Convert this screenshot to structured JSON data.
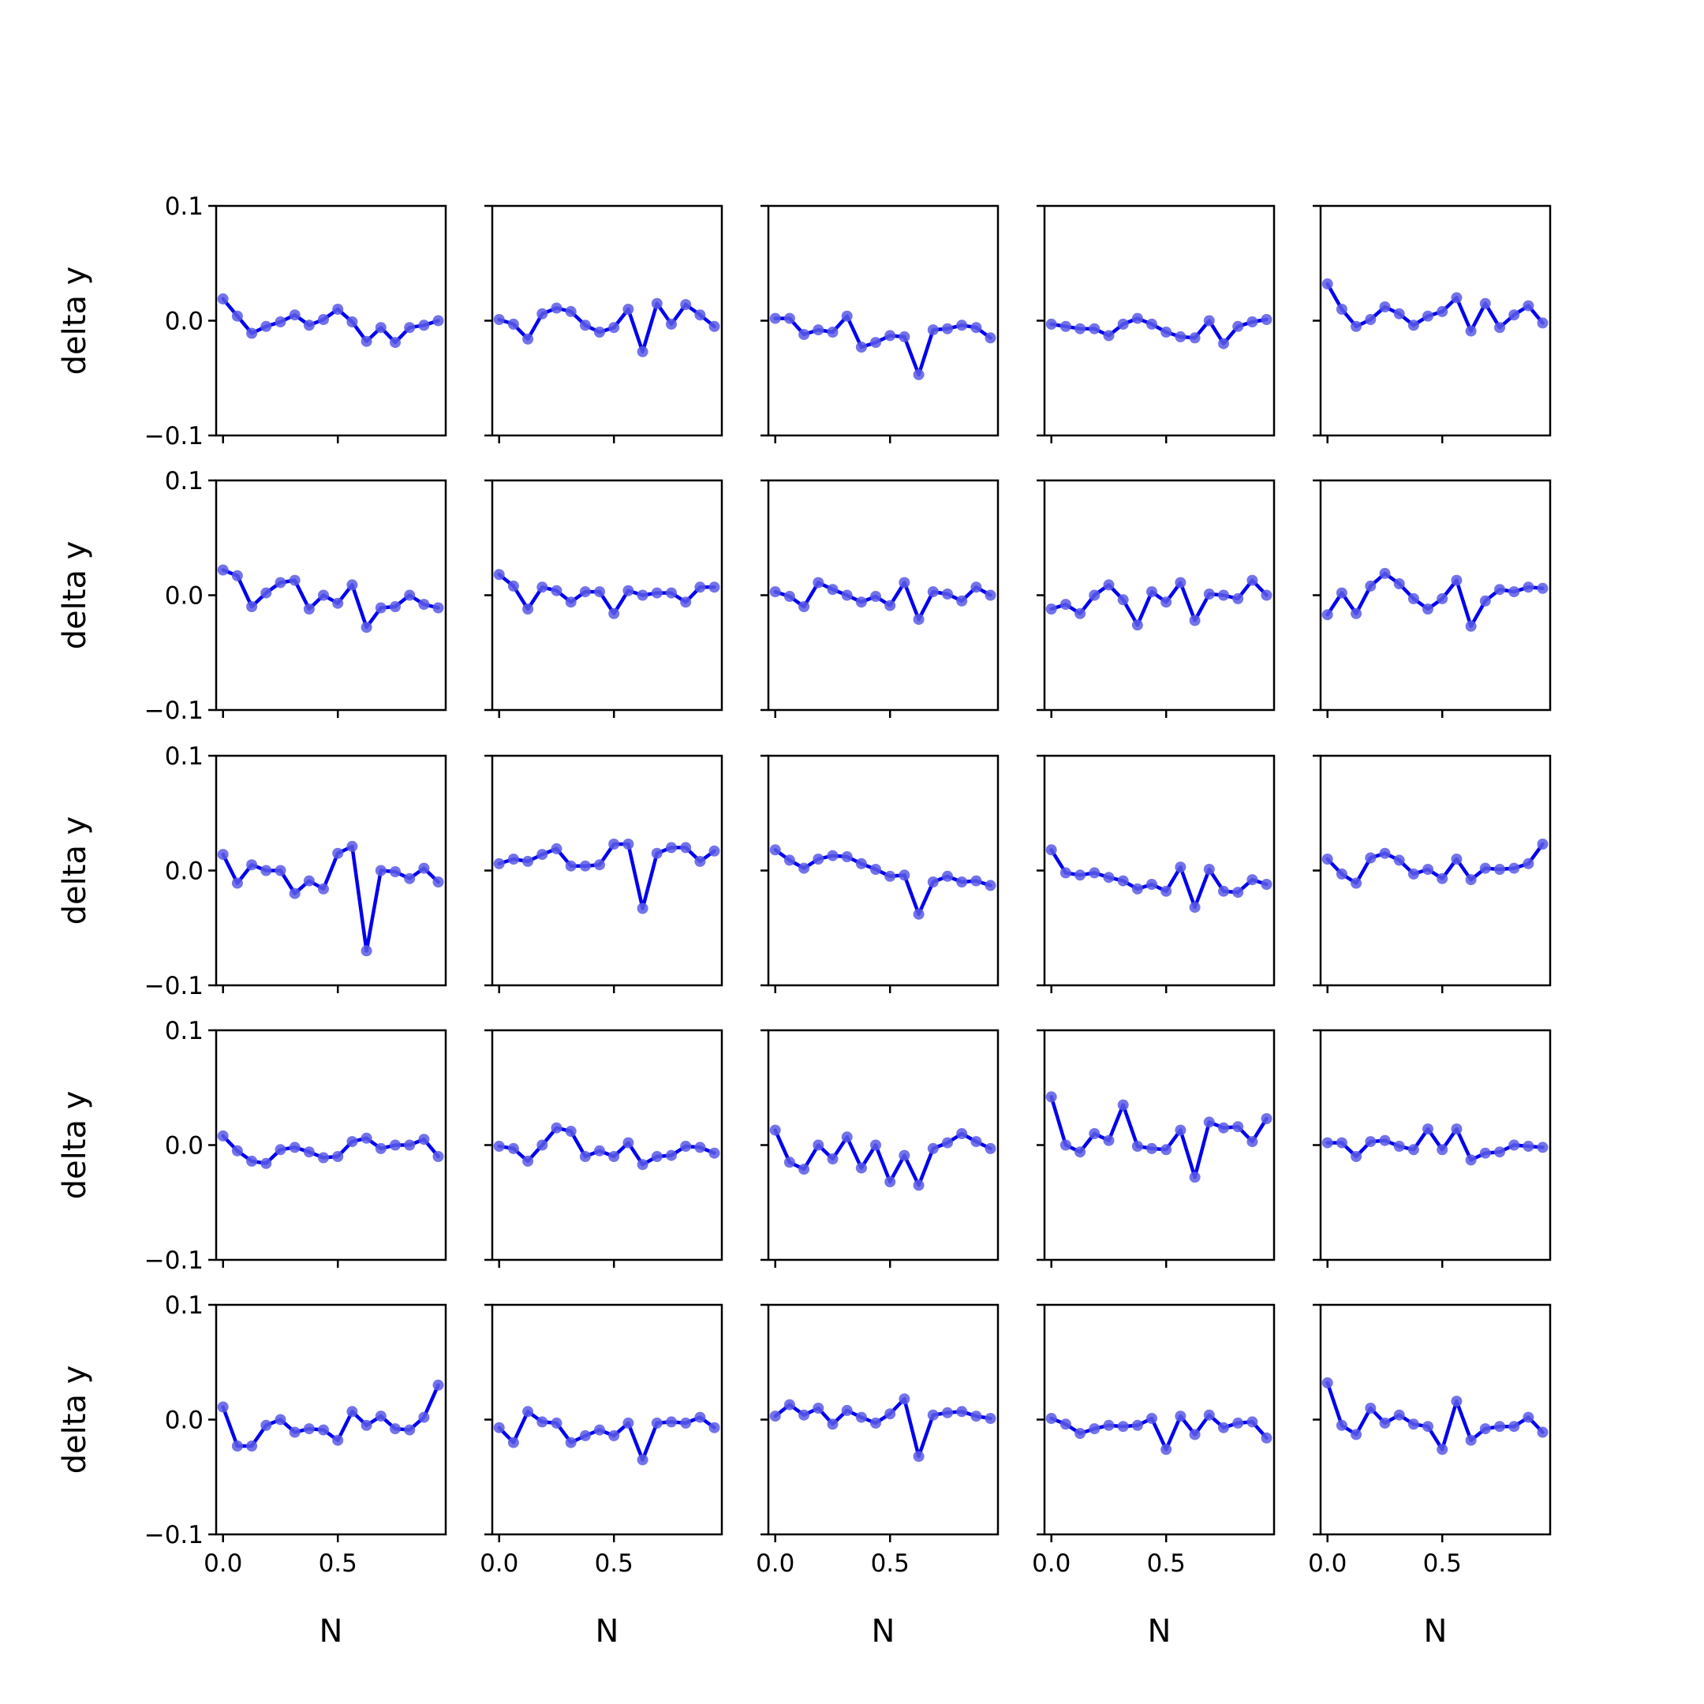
{
  "chart_data": {
    "type": "line",
    "layout": "5x5 grid of subplots, shared x and y axes",
    "xlabel": "N",
    "ylabel": "delta y",
    "xlim": [
      -0.03,
      0.97
    ],
    "ylim": [
      -0.1,
      0.1
    ],
    "x_ticks": [
      0.0,
      0.5
    ],
    "x_tick_labels": [
      "0.0",
      "0.5"
    ],
    "y_ticks": [
      -0.1,
      0.0,
      0.1
    ],
    "y_tick_labels": [
      "−0.1",
      "0.0",
      "0.1"
    ],
    "grid": false,
    "colors": {
      "line": "#0000ee",
      "marker": "#5a5ae6"
    },
    "x": [
      0.0,
      0.0625,
      0.125,
      0.1875,
      0.25,
      0.3125,
      0.375,
      0.4375,
      0.5,
      0.5625,
      0.625,
      0.6875,
      0.75,
      0.8125,
      0.875,
      0.9375
    ],
    "panels": [
      {
        "values": [
          0.019,
          0.004,
          -0.011,
          -0.005,
          -0.001,
          0.005,
          -0.004,
          0.001,
          0.01,
          -0.001,
          -0.018,
          -0.006,
          -0.019,
          -0.006,
          -0.004,
          0.0
        ]
      },
      {
        "values": [
          0.001,
          -0.003,
          -0.016,
          0.006,
          0.011,
          0.008,
          -0.004,
          -0.01,
          -0.006,
          0.01,
          -0.027,
          0.015,
          -0.003,
          0.014,
          0.005,
          -0.005
        ]
      },
      {
        "values": [
          0.002,
          0.002,
          -0.012,
          -0.008,
          -0.01,
          0.004,
          -0.023,
          -0.019,
          -0.013,
          -0.014,
          -0.047,
          -0.008,
          -0.007,
          -0.004,
          -0.006,
          -0.015
        ]
      },
      {
        "values": [
          -0.003,
          -0.005,
          -0.007,
          -0.007,
          -0.013,
          -0.003,
          0.002,
          -0.003,
          -0.01,
          -0.014,
          -0.015,
          0.0,
          -0.02,
          -0.005,
          -0.001,
          0.001
        ]
      },
      {
        "values": [
          0.032,
          0.01,
          -0.005,
          0.001,
          0.012,
          0.006,
          -0.004,
          0.004,
          0.008,
          0.02,
          -0.009,
          0.015,
          -0.006,
          0.005,
          0.013,
          -0.002
        ]
      },
      {
        "values": [
          0.022,
          0.017,
          -0.01,
          0.002,
          0.011,
          0.013,
          -0.012,
          0.0,
          -0.007,
          0.009,
          -0.028,
          -0.011,
          -0.01,
          0.0,
          -0.008,
          -0.011
        ]
      },
      {
        "values": [
          0.018,
          0.008,
          -0.012,
          0.007,
          0.004,
          -0.006,
          0.003,
          0.003,
          -0.016,
          0.004,
          0.0,
          0.002,
          0.002,
          -0.006,
          0.007,
          0.007
        ]
      },
      {
        "values": [
          0.003,
          -0.001,
          -0.01,
          0.011,
          0.005,
          0.0,
          -0.006,
          -0.001,
          -0.009,
          0.011,
          -0.021,
          0.003,
          0.001,
          -0.005,
          0.007,
          0.0
        ]
      },
      {
        "values": [
          -0.012,
          -0.008,
          -0.016,
          0.0,
          0.009,
          -0.004,
          -0.026,
          0.003,
          -0.006,
          0.011,
          -0.022,
          0.001,
          0.0,
          -0.003,
          0.013,
          0.0
        ]
      },
      {
        "values": [
          -0.017,
          0.002,
          -0.016,
          0.008,
          0.019,
          0.01,
          -0.003,
          -0.012,
          -0.003,
          0.013,
          -0.027,
          -0.005,
          0.005,
          0.003,
          0.007,
          0.006
        ]
      },
      {
        "values": [
          0.014,
          -0.011,
          0.005,
          0.0,
          0.0,
          -0.02,
          -0.009,
          -0.016,
          0.015,
          0.021,
          -0.07,
          0.0,
          -0.001,
          -0.007,
          0.002,
          -0.01
        ]
      },
      {
        "values": [
          0.006,
          0.01,
          0.008,
          0.014,
          0.019,
          0.004,
          0.004,
          0.005,
          0.023,
          0.023,
          -0.033,
          0.015,
          0.02,
          0.02,
          0.008,
          0.017
        ]
      },
      {
        "values": [
          0.018,
          0.009,
          0.002,
          0.01,
          0.013,
          0.012,
          0.006,
          0.001,
          -0.005,
          -0.004,
          -0.038,
          -0.01,
          -0.005,
          -0.01,
          -0.009,
          -0.013
        ]
      },
      {
        "values": [
          0.018,
          -0.002,
          -0.004,
          -0.002,
          -0.006,
          -0.009,
          -0.016,
          -0.012,
          -0.018,
          0.003,
          -0.032,
          0.001,
          -0.018,
          -0.019,
          -0.008,
          -0.012
        ]
      },
      {
        "values": [
          0.01,
          -0.003,
          -0.011,
          0.011,
          0.015,
          0.009,
          -0.003,
          0.001,
          -0.007,
          0.01,
          -0.008,
          0.002,
          0.001,
          0.002,
          0.006,
          0.023
        ]
      },
      {
        "values": [
          0.008,
          -0.005,
          -0.014,
          -0.016,
          -0.004,
          -0.002,
          -0.006,
          -0.011,
          -0.01,
          0.003,
          0.006,
          -0.003,
          0.0,
          0.0,
          0.005,
          -0.01
        ]
      },
      {
        "values": [
          -0.001,
          -0.003,
          -0.014,
          0.0,
          0.015,
          0.012,
          -0.01,
          -0.005,
          -0.01,
          0.002,
          -0.017,
          -0.01,
          -0.009,
          -0.001,
          -0.002,
          -0.007
        ]
      },
      {
        "values": [
          0.013,
          -0.015,
          -0.021,
          0.0,
          -0.012,
          0.007,
          -0.02,
          0.0,
          -0.032,
          -0.009,
          -0.035,
          -0.003,
          0.002,
          0.01,
          0.003,
          -0.003
        ]
      },
      {
        "values": [
          0.042,
          0.0,
          -0.006,
          0.01,
          0.004,
          0.035,
          -0.001,
          -0.003,
          -0.004,
          0.013,
          -0.028,
          0.02,
          0.015,
          0.016,
          0.003,
          0.023
        ]
      },
      {
        "values": [
          0.002,
          0.002,
          -0.01,
          0.003,
          0.004,
          -0.001,
          -0.004,
          0.014,
          -0.004,
          0.014,
          -0.013,
          -0.007,
          -0.006,
          0.0,
          -0.001,
          -0.002
        ]
      },
      {
        "values": [
          0.011,
          -0.023,
          -0.023,
          -0.005,
          0.0,
          -0.011,
          -0.008,
          -0.009,
          -0.018,
          0.007,
          -0.005,
          0.003,
          -0.008,
          -0.009,
          0.002,
          0.03
        ]
      },
      {
        "values": [
          -0.007,
          -0.02,
          0.007,
          -0.002,
          -0.003,
          -0.02,
          -0.014,
          -0.009,
          -0.014,
          -0.003,
          -0.035,
          -0.003,
          -0.002,
          -0.003,
          0.002,
          -0.007
        ]
      },
      {
        "values": [
          0.003,
          0.013,
          0.004,
          0.01,
          -0.004,
          0.008,
          0.002,
          -0.003,
          0.005,
          0.018,
          -0.032,
          0.004,
          0.006,
          0.007,
          0.003,
          0.001
        ]
      },
      {
        "values": [
          0.001,
          -0.004,
          -0.012,
          -0.008,
          -0.005,
          -0.006,
          -0.005,
          0.001,
          -0.026,
          0.003,
          -0.013,
          0.004,
          -0.007,
          -0.003,
          -0.002,
          -0.016
        ]
      },
      {
        "values": [
          0.032,
          -0.005,
          -0.013,
          0.01,
          -0.003,
          0.004,
          -0.004,
          -0.006,
          -0.026,
          0.016,
          -0.018,
          -0.008,
          -0.006,
          -0.006,
          0.002,
          -0.011
        ]
      }
    ]
  }
}
